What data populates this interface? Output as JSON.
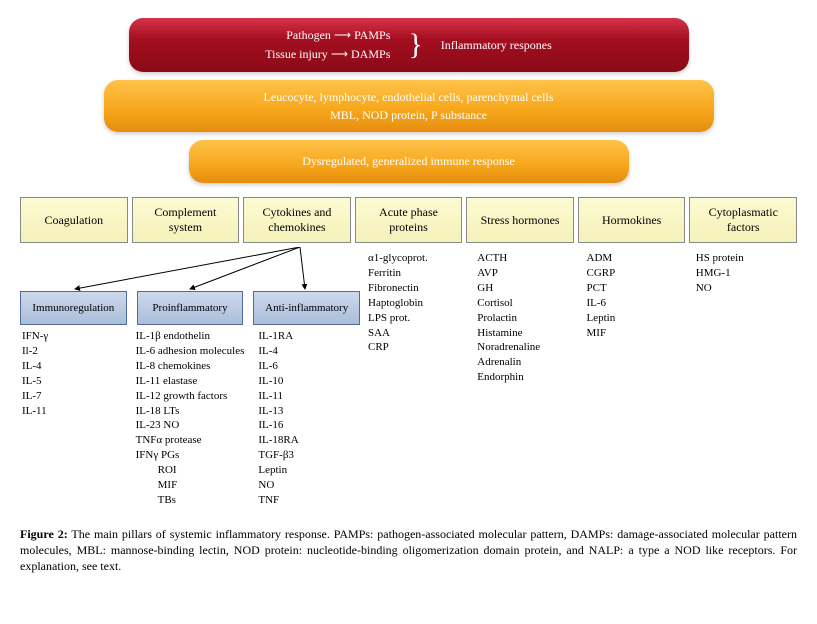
{
  "topbar": {
    "line1_left": "Pathogen",
    "line1_right": "PAMPs",
    "line2_left": "Tissue injury",
    "line2_right": "DAMPs",
    "arrow": "⟶",
    "right_label": "Inflammatory respones",
    "bg_top": "#d4334a",
    "bg_bottom": "#8b0a18",
    "text_color": "#ffffff"
  },
  "midbar": {
    "line1": "Leucocyte, lymphocyte, endothelial cells, parenchymal cells",
    "line2": "MBL, NOD protein, P substance",
    "bg_top": "#ffc24a",
    "bg_bottom": "#e58d0f"
  },
  "lowbar": {
    "text": "Dysregulated, generalized immune response",
    "bg_top": "#ffc24a",
    "bg_bottom": "#e58d0f"
  },
  "pillars": [
    "Coagulation",
    "Complement system",
    "Cytokines and chemokines",
    "Acute phase proteins",
    "Stress hormones",
    "Hormokines",
    "Cytoplasmatic factors"
  ],
  "pillar_style": {
    "bg_top": "#fcfad2",
    "bg_bottom": "#f5f1b9",
    "border": "#888888"
  },
  "sub_boxes": [
    "Immunoregulation",
    "Proinflammatory",
    "Anti-inflammatory"
  ],
  "sub_box_style": {
    "bg_top": "#cdd9ec",
    "bg_bottom": "#aabdd9",
    "border": "#4c6a9a"
  },
  "arrow_origin_index": 2,
  "sub_lists": {
    "immunoregulation": [
      "IFN-γ",
      "Il-2",
      "IL-4",
      "IL-5",
      "IL-7",
      "IL-11"
    ],
    "proinflammatory": [
      "IL-1β endothelin",
      "IL-6 adhesion molecules",
      "IL-8 chemokines",
      "IL-11 elastase",
      "IL-12 growth factors",
      "IL-18 LTs",
      "IL-23 NO",
      "TNFα protease",
      "IFNγ PGs",
      "        ROI",
      "        MIF",
      "        TBs"
    ],
    "anti_inflammatory": [
      "IL-1RA",
      "IL-4",
      "IL-6",
      "IL-10",
      "IL-11",
      "IL-13",
      "IL-16",
      "IL-18RA",
      "TGF-β3",
      "Leptin",
      "NO",
      "TNF"
    ]
  },
  "pillar_lists": {
    "acute_phase": [
      "α1-glycoprot.",
      "Ferritin",
      "Fibronectin",
      "Haptoglobin",
      "LPS prot.",
      "SAA",
      "CRP"
    ],
    "stress_hormones": [
      "ACTH",
      "AVP",
      "GH",
      "Cortisol",
      "Prolactin",
      "Histamine",
      "Noradrenaline",
      "Adrenalin",
      "Endorphin"
    ],
    "hormokines": [
      "ADM",
      "CGRP",
      "PCT",
      "IL-6",
      "Leptin",
      "MIF"
    ],
    "cytoplasmatic": [
      "HS protein",
      "HMG-1",
      "NO"
    ]
  },
  "caption": {
    "label": "Figure 2:",
    "text": " The main pillars of systemic inflammatory response. PAMPs: pathogen-associated molecular pattern, DAMPs: damage-associated molecular pattern molecules, MBL: mannose-binding lectin, NOD protein: nucleotide-binding oligomerization domain protein, and NALP: a type a NOD like receptors. For explanation, see text."
  }
}
